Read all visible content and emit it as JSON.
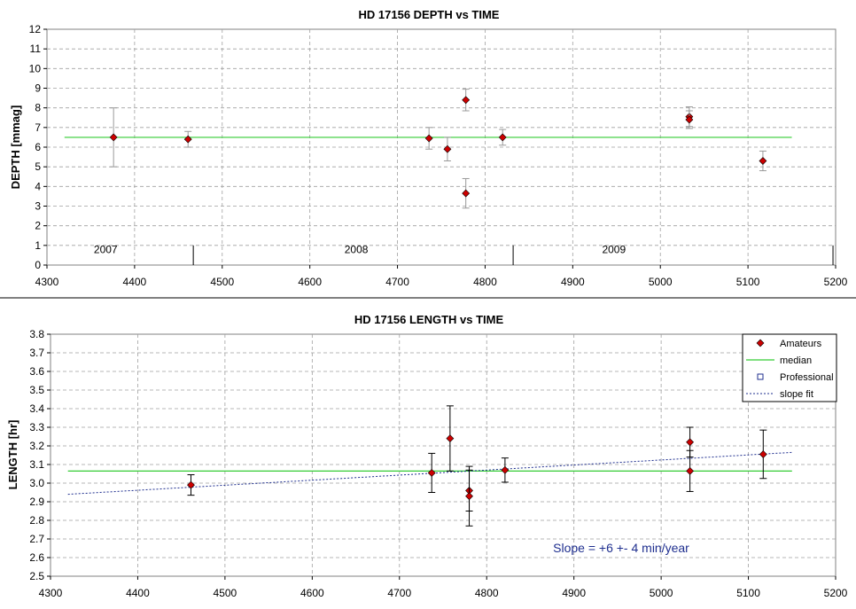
{
  "chart_data": [
    {
      "type": "scatter",
      "title": "HD 17156 DEPTH vs TIME",
      "xlabel": "",
      "ylabel": "DEPTH [mmag]",
      "xlim": [
        4300,
        5200
      ],
      "ylim": [
        0,
        12
      ],
      "xticks": [
        4300,
        4400,
        4500,
        4600,
        4700,
        4800,
        4900,
        5000,
        5100,
        5200
      ],
      "yticks": [
        0,
        1,
        2,
        3,
        4,
        5,
        6,
        7,
        8,
        9,
        10,
        11,
        12
      ],
      "grid": true,
      "colors": {
        "points": "#cc0000",
        "median": "#33cc33",
        "errorbar": "#999999"
      },
      "series": [
        {
          "points": [
            {
              "x": 4376,
              "y": 6.5,
              "err": 1.5
            },
            {
              "x": 4461,
              "y": 6.4,
              "err": 0.4
            },
            {
              "x": 4736,
              "y": 6.45,
              "err": 0.55
            },
            {
              "x": 4757,
              "y": 5.9,
              "err": 0.6
            },
            {
              "x": 4778,
              "y": 8.4,
              "err": 0.55
            },
            {
              "x": 4778,
              "y": 3.65,
              "err": 0.75
            },
            {
              "x": 4820,
              "y": 6.5,
              "err": 0.4
            },
            {
              "x": 5033,
              "y": 7.55,
              "err": 0.5
            },
            {
              "x": 5033,
              "y": 7.4,
              "err": 0.45
            },
            {
              "x": 5117,
              "y": 5.3,
              "err": 0.5
            }
          ]
        }
      ],
      "median": {
        "x": [
          4320,
          5150
        ],
        "y": 6.5
      },
      "year_markers": [
        {
          "label": "2007",
          "x_label": 4367,
          "boundary": 4467
        },
        {
          "label": "2008",
          "x_label": 4653,
          "boundary": 4832
        },
        {
          "label": "2009",
          "x_label": 4947,
          "boundary": 5197
        }
      ]
    },
    {
      "type": "scatter",
      "title": "HD 17156 LENGTH vs TIME",
      "xlabel": "",
      "ylabel": "LENGTH [hr]",
      "xlim": [
        4300,
        5200
      ],
      "ylim": [
        2.5,
        3.8
      ],
      "xticks": [
        4300,
        4400,
        4500,
        4600,
        4700,
        4800,
        4900,
        5000,
        5100,
        5200
      ],
      "yticks": [
        "2.5",
        "2.6",
        "2.7",
        "2.8",
        "2.9",
        "3.0",
        "3.1",
        "3.2",
        "3.3",
        "3.4",
        "3.5",
        "3.6",
        "3.7",
        "3.8"
      ],
      "grid": true,
      "legend": {
        "position": "top-right",
        "entries": [
          "Amateurs",
          "median",
          "Professional",
          "slope fit"
        ]
      },
      "colors": {
        "points": "#cc0000",
        "median": "#33cc33",
        "slope_fit": "#1f2f8f",
        "professional": "#1f2f8f",
        "errorbar": "#000000"
      },
      "series": [
        {
          "name": "Amateurs",
          "points": [
            {
              "x": 4461,
              "y": 2.99,
              "err": 0.055
            },
            {
              "x": 4737,
              "y": 3.055,
              "err": 0.105
            },
            {
              "x": 4758,
              "y": 3.24,
              "err": 0.175
            },
            {
              "x": 4780,
              "y": 2.96,
              "err": 0.11
            },
            {
              "x": 4780,
              "y": 2.93,
              "err": 0.16
            },
            {
              "x": 4821,
              "y": 3.07,
              "err": 0.065
            },
            {
              "x": 5033,
              "y": 3.22,
              "err": 0.08
            },
            {
              "x": 5033,
              "y": 3.065,
              "err": 0.11
            },
            {
              "x": 5117,
              "y": 3.155,
              "err": 0.13
            }
          ]
        }
      ],
      "median": {
        "x": [
          4320,
          5150
        ],
        "y": 3.065
      },
      "slope_fit": {
        "x": [
          4320,
          5150
        ],
        "y": [
          2.94,
          3.165
        ]
      },
      "annotation": "Slope = +6 +- 4 min/year"
    }
  ]
}
